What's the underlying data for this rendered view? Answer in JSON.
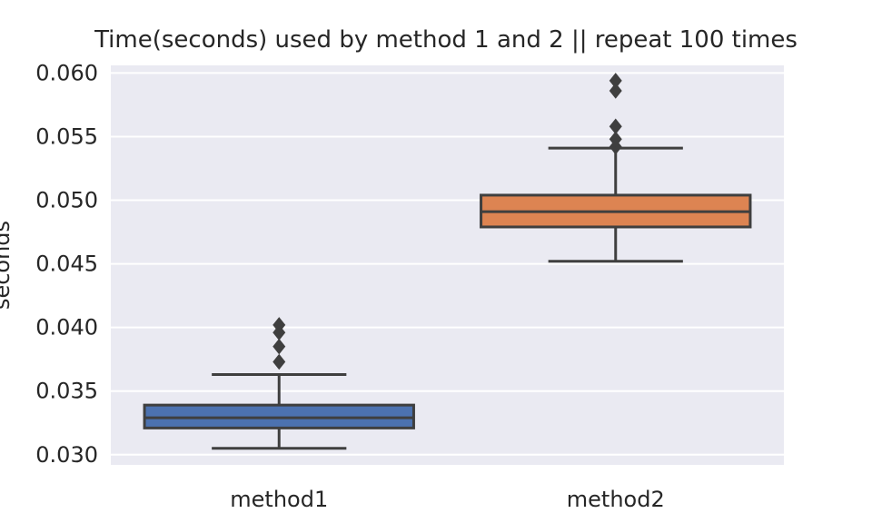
{
  "chart_data": {
    "type": "box",
    "title": "Time(seconds) used by method 1 and 2 || repeat 100 times",
    "xlabel": "",
    "ylabel": "seconds",
    "ylim": [
      0.0292,
      0.0606
    ],
    "yticks": [
      "0.030",
      "0.035",
      "0.040",
      "0.045",
      "0.050",
      "0.055",
      "0.060"
    ],
    "grid": true,
    "categories": [
      "method1",
      "method2"
    ],
    "boxes": [
      {
        "name": "method1",
        "color": "#4C72B0",
        "whisker_low": 0.0305,
        "q1": 0.0321,
        "median": 0.0329,
        "q3": 0.0339,
        "whisker_high": 0.0363,
        "outliers": [
          0.0373,
          0.0385,
          0.0396,
          0.0402
        ]
      },
      {
        "name": "method2",
        "color": "#DD8452",
        "whisker_low": 0.0452,
        "q1": 0.0479,
        "median": 0.0491,
        "q3": 0.0504,
        "whisker_high": 0.0541,
        "outliers": [
          0.0542,
          0.0548,
          0.0558,
          0.0586,
          0.0594
        ]
      }
    ]
  }
}
